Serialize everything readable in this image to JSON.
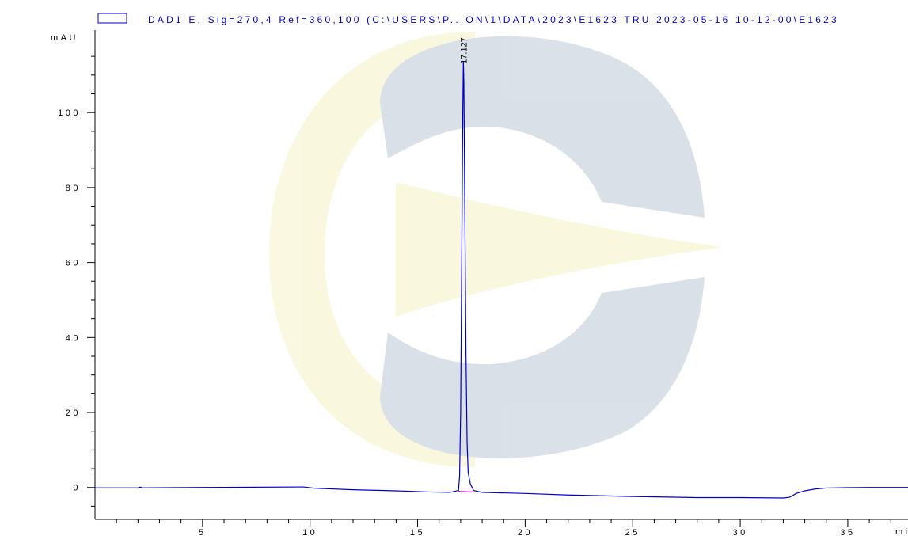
{
  "legend": {
    "label": "DAD1 E, Sig=270,4 Ref=360,100 (C:\\USERS\\P...ON\\1\\DATA\\2023\\E1623 TRU 2023-05-16 10-12-00\\E1623",
    "color": "#0000cc"
  },
  "chart_data": {
    "type": "line",
    "title": "",
    "xlabel": "min",
    "ylabel": "mAU",
    "xlim": [
      0,
      37.8
    ],
    "ylim": [
      -8.5,
      122
    ],
    "x_ticks": [
      "5",
      "10",
      "15",
      "20",
      "25",
      "30",
      "35"
    ],
    "y_ticks": [
      "0",
      "20",
      "40",
      "60",
      "80",
      "100"
    ],
    "series": [
      {
        "color": "#0000cc",
        "x": [
          0,
          2.0,
          2.1,
          2.2,
          5,
          9.7,
          10.2,
          12,
          14,
          15.5,
          16.5,
          16.9,
          16.95,
          17.0,
          17.05,
          17.1,
          17.127,
          17.15,
          17.2,
          17.25,
          17.3,
          17.35,
          17.45,
          17.6,
          18,
          20,
          22,
          25,
          28,
          30,
          32.0,
          32.3,
          32.6,
          33.0,
          33.5,
          34,
          35,
          36,
          37.8
        ],
        "values": [
          -0.1,
          -0.1,
          0.1,
          -0.1,
          0,
          0.15,
          -0.2,
          -0.6,
          -0.9,
          -1.2,
          -1.3,
          -0.8,
          3,
          20,
          60,
          100,
          113.8,
          108,
          70,
          35,
          12,
          4,
          1,
          -0.8,
          -1.3,
          -1.6,
          -2.0,
          -2.4,
          -2.7,
          -2.7,
          -2.8,
          -2.6,
          -1.6,
          -0.9,
          -0.4,
          -0.15,
          -0.05,
          0,
          0
        ]
      }
    ],
    "peaks": [
      {
        "rt": 17.127,
        "label": "17.127",
        "height": 113.8
      }
    ],
    "baseline_segment": {
      "x": [
        16.9,
        17.6
      ],
      "y": [
        -1.0,
        -1.2
      ],
      "color": "#ff00ff"
    },
    "grid": false
  }
}
